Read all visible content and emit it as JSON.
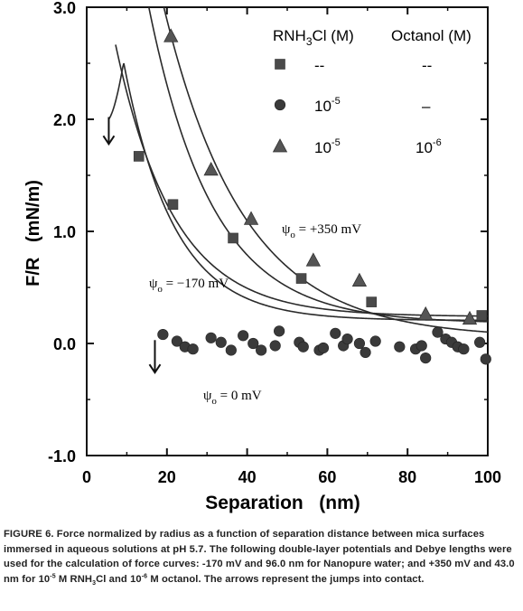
{
  "chart_data": {
    "type": "scatter",
    "xlabel": "Separation   (nm)",
    "ylabel": "F/R   (mN/m)",
    "xlim": [
      0,
      100
    ],
    "ylim": [
      -1.0,
      3.0
    ],
    "x_ticks": [
      0,
      20,
      40,
      60,
      80,
      100
    ],
    "x_tick_labels": [
      "0",
      "20",
      "40",
      "60",
      "80",
      "100"
    ],
    "y_ticks": [
      -1.0,
      0.0,
      1.0,
      2.0,
      3.0
    ],
    "y_tick_labels": [
      "-1.0",
      "0.0",
      "1.0",
      "2.0",
      "3.0"
    ],
    "legend": {
      "position": "top-right",
      "header_rnh": "RNH",
      "header_rnh_sub": "3",
      "header_rnh_rest": "Cl (M)",
      "header_octanol": "Octanol (M)",
      "rows": [
        {
          "marker": "square",
          "rnh": "--",
          "rnh_exp": "",
          "octanol": "--",
          "octanol_exp": ""
        },
        {
          "marker": "circle",
          "rnh": "10",
          "rnh_exp": "-5",
          "octanol": "–",
          "octanol_exp": ""
        },
        {
          "marker": "triangle",
          "rnh": "10",
          "rnh_exp": "-5",
          "octanol": "10",
          "octanol_exp": "-6"
        }
      ]
    },
    "series": [
      {
        "marker": "square",
        "points": [
          [
            13,
            1.67
          ],
          [
            21.5,
            1.24
          ],
          [
            36.5,
            0.94
          ],
          [
            53.5,
            0.58
          ],
          [
            71,
            0.37
          ],
          [
            98.5,
            0.25
          ]
        ]
      },
      {
        "marker": "circle",
        "points": [
          [
            19,
            0.08
          ],
          [
            22.5,
            0.02
          ],
          [
            24.5,
            -0.03
          ],
          [
            26.5,
            -0.05
          ],
          [
            31,
            0.05
          ],
          [
            33.5,
            0.01
          ],
          [
            36,
            -0.06
          ],
          [
            39,
            0.07
          ],
          [
            41.5,
            0.0
          ],
          [
            43.5,
            -0.06
          ],
          [
            47,
            -0.02
          ],
          [
            48,
            0.11
          ],
          [
            53,
            0.01
          ],
          [
            54,
            -0.03
          ],
          [
            58,
            -0.06
          ],
          [
            59,
            -0.04
          ],
          [
            62,
            0.09
          ],
          [
            64,
            -0.02
          ],
          [
            65,
            0.04
          ],
          [
            68,
            0.0
          ],
          [
            69.5,
            -0.08
          ],
          [
            72,
            0.02
          ],
          [
            78,
            -0.03
          ],
          [
            82,
            -0.05
          ],
          [
            83.5,
            -0.02
          ],
          [
            84.5,
            -0.13
          ],
          [
            87.5,
            0.1
          ],
          [
            89.5,
            0.04
          ],
          [
            91,
            0.01
          ],
          [
            92.5,
            -0.03
          ],
          [
            94,
            -0.05
          ],
          [
            98,
            0.01
          ],
          [
            99.5,
            -0.14
          ]
        ]
      },
      {
        "marker": "triangle",
        "points": [
          [
            21,
            2.74
          ],
          [
            31,
            1.55
          ],
          [
            41,
            1.11
          ],
          [
            56.5,
            0.74
          ],
          [
            68,
            0.56
          ],
          [
            84.5,
            0.26
          ],
          [
            95.5,
            0.22
          ]
        ]
      }
    ],
    "curves": [
      {
        "label": "-170",
        "psi0_mV": -170,
        "debye_nm": 96.0,
        "x_start": 5.5,
        "peak": 2.12
      },
      {
        "label": "+350",
        "psi0_mV": 350,
        "debye_nm": 43.0,
        "x_start": 17.5
      }
    ],
    "annotations": {
      "psi_neg": {
        "psi": "ψ",
        "sub": "o",
        "rest": " = −170 mV"
      },
      "psi_pos": {
        "psi": "ψ",
        "sub": "o",
        "rest": " = +350 mV"
      },
      "psi_zero": {
        "psi": "ψ",
        "sub": "o",
        "rest": " = 0 mV"
      }
    },
    "arrows": [
      {
        "x": 5.5,
        "y_from": 2.02,
        "y_to": 1.78
      },
      {
        "x": 17,
        "y_from": 0.03,
        "y_to": -0.26
      }
    ]
  },
  "caption": {
    "lead": "FIGURE 6.  Force normalized by radius as a function of separation distance between mica surfaces immersed in aqueous solutions at pH 5.7.  The following double-layer potentials and Debye lengths were used for the calculation of force curves: -170 mV and 96.0 nm for Nanopure water; and  +350 mV and 43.0 nm for 10",
    "exp1": "-5",
    "mid1": " M RNH",
    "sub1": "3",
    "mid2": "Cl and 10",
    "exp2": "-6",
    "tail": " M octanol.  The arrows represent the jumps into contact."
  }
}
